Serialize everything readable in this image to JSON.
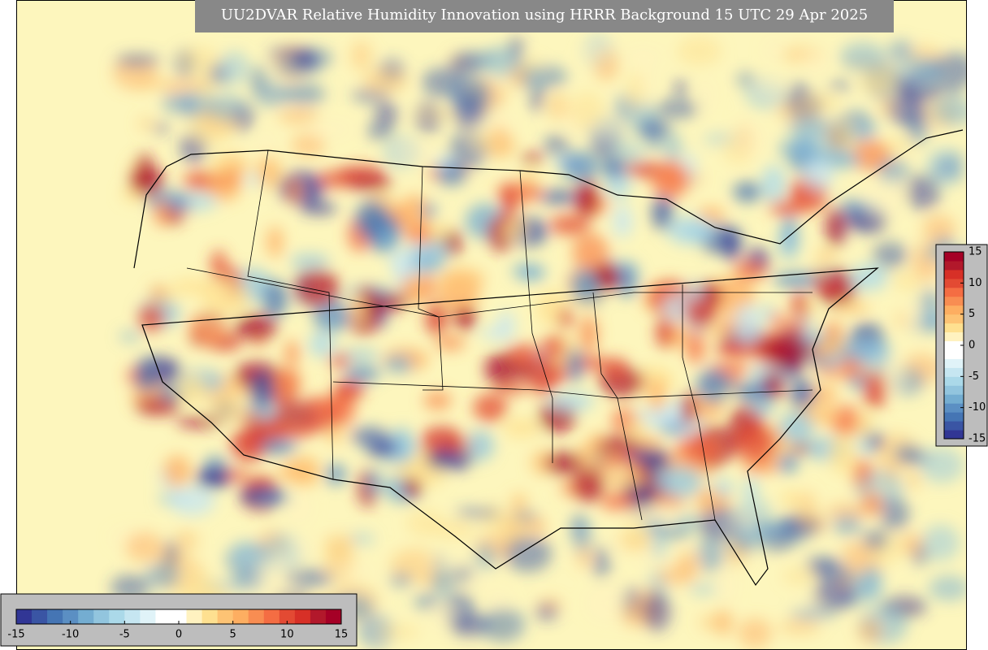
{
  "title": "UU2DVAR Relative Humidity Innovation using HRRR Background 15 UTC 29 Apr 2025",
  "colorbar_bottom": {
    "range": [
      -15,
      15
    ],
    "ticks": [
      -15,
      -10,
      -5,
      0,
      5,
      10,
      15
    ],
    "colors": [
      "#313695",
      "#3a55a4",
      "#4575b4",
      "#5b8fc3",
      "#74add1",
      "#92c5de",
      "#abd9e9",
      "#c6e6f1",
      "#e0f3f8",
      "#ffffff",
      "#ffffff",
      "#fff2c0",
      "#fee090",
      "#fdc374",
      "#fdae61",
      "#f88d52",
      "#f46d43",
      "#e34a33",
      "#d73027",
      "#b2182b",
      "#a50026"
    ]
  },
  "colorbar_right": {
    "range": [
      -15,
      15
    ],
    "ticks": [
      15,
      10,
      5,
      0,
      -5,
      -10,
      -15
    ],
    "colors": [
      "#313695",
      "#3a55a4",
      "#4575b4",
      "#5b8fc3",
      "#74add1",
      "#92c5de",
      "#abd9e9",
      "#c6e6f1",
      "#e0f3f8",
      "#ffffff",
      "#ffffff",
      "#fff2c0",
      "#fee090",
      "#fdc374",
      "#fdae61",
      "#f88d52",
      "#f46d43",
      "#e34a33",
      "#d73027",
      "#b2182b",
      "#a50026"
    ]
  }
}
